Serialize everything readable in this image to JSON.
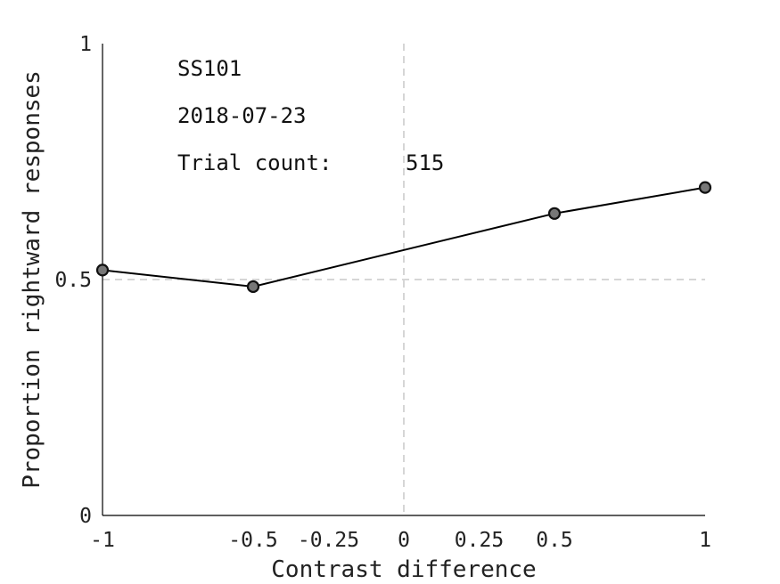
{
  "chart_data": {
    "type": "line",
    "title": "",
    "xlabel": "Contrast difference",
    "ylabel": "Proportion rightward responses",
    "xlim": [
      -1,
      1
    ],
    "ylim": [
      0,
      1
    ],
    "x_ticks": [
      -1,
      -0.5,
      -0.25,
      0,
      0.25,
      0.5,
      1
    ],
    "x_tick_labels": [
      "-1",
      "-0.5",
      "-0.25",
      "0",
      "0.25",
      "0.5",
      "1"
    ],
    "y_ticks": [
      0,
      0.5,
      1
    ],
    "y_tick_labels": [
      "0",
      "0.5",
      "1"
    ],
    "reference_lines": {
      "x": 0,
      "y": 0.5
    },
    "grid": false,
    "series": [
      {
        "x": [
          -1,
          -0.5,
          0.5,
          1
        ],
        "y": [
          0.52,
          0.485,
          0.64,
          0.695
        ],
        "line_color": "#000000",
        "marker_fill": "#777777",
        "marker_edge": "#111111"
      }
    ],
    "annotations": {
      "subject": "SS101",
      "date": "2018-07-23",
      "trial_count_label": "Trial count:",
      "trial_count_value": "515"
    }
  }
}
